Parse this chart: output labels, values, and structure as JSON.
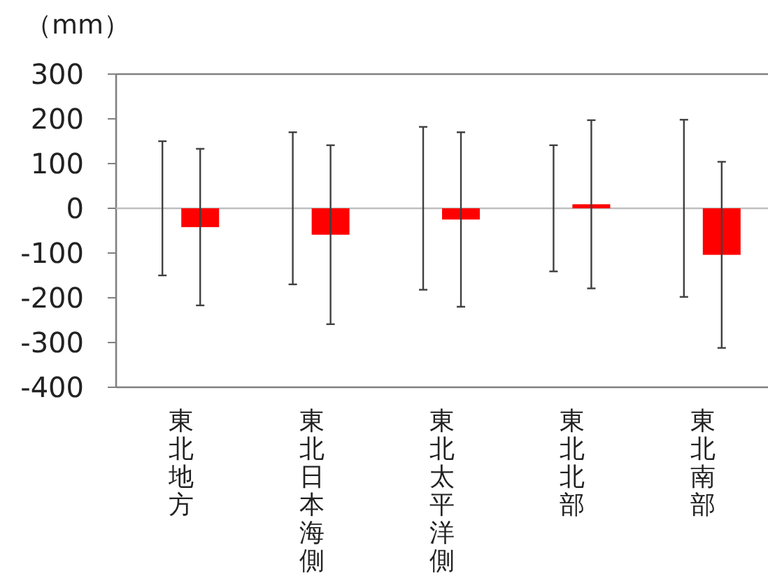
{
  "chart_data": {
    "type": "bar",
    "ylabel": "（mm）",
    "categories": [
      "東北地方",
      "東北日本海側",
      "東北太平洋側",
      "東北北部",
      "東北南部"
    ],
    "series": [
      {
        "color": "#bfbfbf",
        "values": [
          0,
          0,
          0,
          0,
          0
        ],
        "errors": [
          150,
          170,
          182,
          141,
          198
        ]
      },
      {
        "color": "#ff0000",
        "values": [
          -42,
          -59,
          -25,
          9,
          -104
        ],
        "errors": [
          175,
          200,
          195,
          188,
          208
        ]
      }
    ],
    "ylim": [
      -400,
      300
    ],
    "yticks": [
      -400,
      -300,
      -200,
      -100,
      0,
      100,
      200,
      300
    ],
    "ref_lines": [
      {
        "axis": "y",
        "value": 0,
        "color": "#bfbfbf"
      }
    ],
    "grid": false
  }
}
